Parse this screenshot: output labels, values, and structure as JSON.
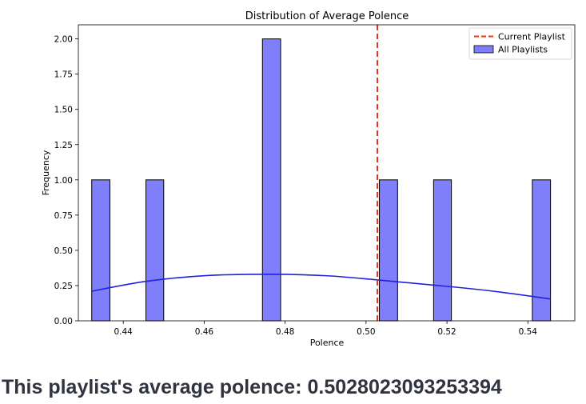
{
  "chart_data": {
    "type": "histogram",
    "title": "Distribution of Average Polence",
    "xlabel": "Polence",
    "ylabel": "Frequency",
    "xlim": [
      0.4289,
      0.5516
    ],
    "ylim": [
      0,
      2.1
    ],
    "x_ticks": [
      0.44,
      0.46,
      0.48,
      0.5,
      0.52,
      0.54
    ],
    "x_tick_labels": [
      "0.44",
      "0.46",
      "0.48",
      "0.50",
      "0.52",
      "0.54"
    ],
    "y_ticks": [
      0,
      0.25,
      0.5,
      0.75,
      1.0,
      1.25,
      1.5,
      1.75,
      2.0
    ],
    "y_tick_labels": [
      "0.00",
      "0.25",
      "0.50",
      "0.75",
      "1.00",
      "1.25",
      "1.50",
      "1.75",
      "2.00"
    ],
    "bins": [
      {
        "x0": 0.4322,
        "x1": 0.4367,
        "count": 1
      },
      {
        "x0": 0.4456,
        "x1": 0.45,
        "count": 1
      },
      {
        "x0": 0.4744,
        "x1": 0.4789,
        "count": 2
      },
      {
        "x0": 0.5033,
        "x1": 0.5078,
        "count": 1
      },
      {
        "x0": 0.5167,
        "x1": 0.5211,
        "count": 1
      },
      {
        "x0": 0.5411,
        "x1": 0.5456,
        "count": 1
      }
    ],
    "kde": {
      "x": [
        0.4322,
        0.4456,
        0.46,
        0.476,
        0.49,
        0.5028,
        0.516,
        0.53,
        0.5456
      ],
      "y": [
        0.21,
        0.28,
        0.32,
        0.33,
        0.32,
        0.29,
        0.255,
        0.215,
        0.155
      ]
    },
    "current_value": 0.5028,
    "legend": {
      "placement": "top-right",
      "entries": [
        {
          "label": "Current Playlist",
          "kind": "dashed-line",
          "color": "#ff3300"
        },
        {
          "label": "All Playlists",
          "kind": "patch",
          "color": "#7f7ffb"
        }
      ]
    },
    "colors": {
      "bar": "#7f7ffb",
      "bar_edge": "#000000",
      "kde": "#2020e0",
      "current": "#e8351a"
    }
  },
  "summary_text": "This playlist's average polence: 0.5028023093253394"
}
